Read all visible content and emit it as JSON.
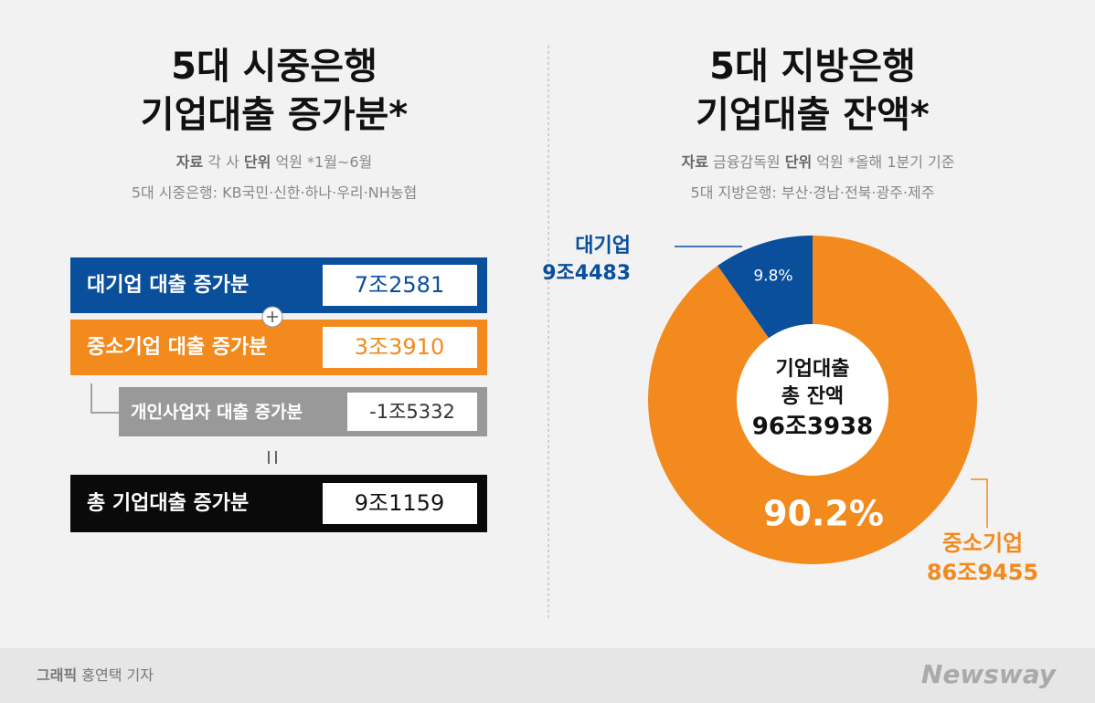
{
  "left": {
    "title_lines": [
      "5대 시중은행",
      "기업대출 증가분*"
    ],
    "source_label": "자료",
    "source": "각 사",
    "unit_label": "단위",
    "unit": "억원",
    "note": "*1월~6월",
    "banks": "5대 시중은행: KB국민·신한·하나·우리·NH농협",
    "rows": [
      {
        "label": "대기업 대출 증가분",
        "value": "7조2581"
      },
      {
        "label": "중소기업 대출 증가분",
        "value": "3조3910"
      },
      {
        "label": "개인사업자 대출 증가분",
        "value": "-1조5332"
      },
      {
        "label": "총 기업대출 증가분",
        "value": "9조1159"
      }
    ]
  },
  "right": {
    "title_lines": [
      "5대 지방은행",
      "기업대출 잔액*"
    ],
    "source_label": "자료",
    "source": "금융감독원",
    "unit_label": "단위",
    "unit": "억원",
    "note": "*올해 1분기 기준",
    "banks": "5대 지방은행: 부산·경남·전북·광주·제주"
  },
  "chart_data": {
    "type": "donut",
    "center_label_lines": [
      "기업대출",
      "총 잔액",
      "96조3938"
    ],
    "categories": [
      "대기업",
      "중소기업"
    ],
    "values": [
      9.8,
      90.2
    ],
    "value_labels": [
      "9.8%",
      "90.2%"
    ],
    "amounts": [
      "9조4483",
      "86조9455"
    ],
    "colors": [
      "#0a4f9c",
      "#f28a1e"
    ]
  },
  "footer": {
    "credit_label": "그래픽",
    "credit": "홍연택 기자",
    "brand": "Newsway"
  }
}
